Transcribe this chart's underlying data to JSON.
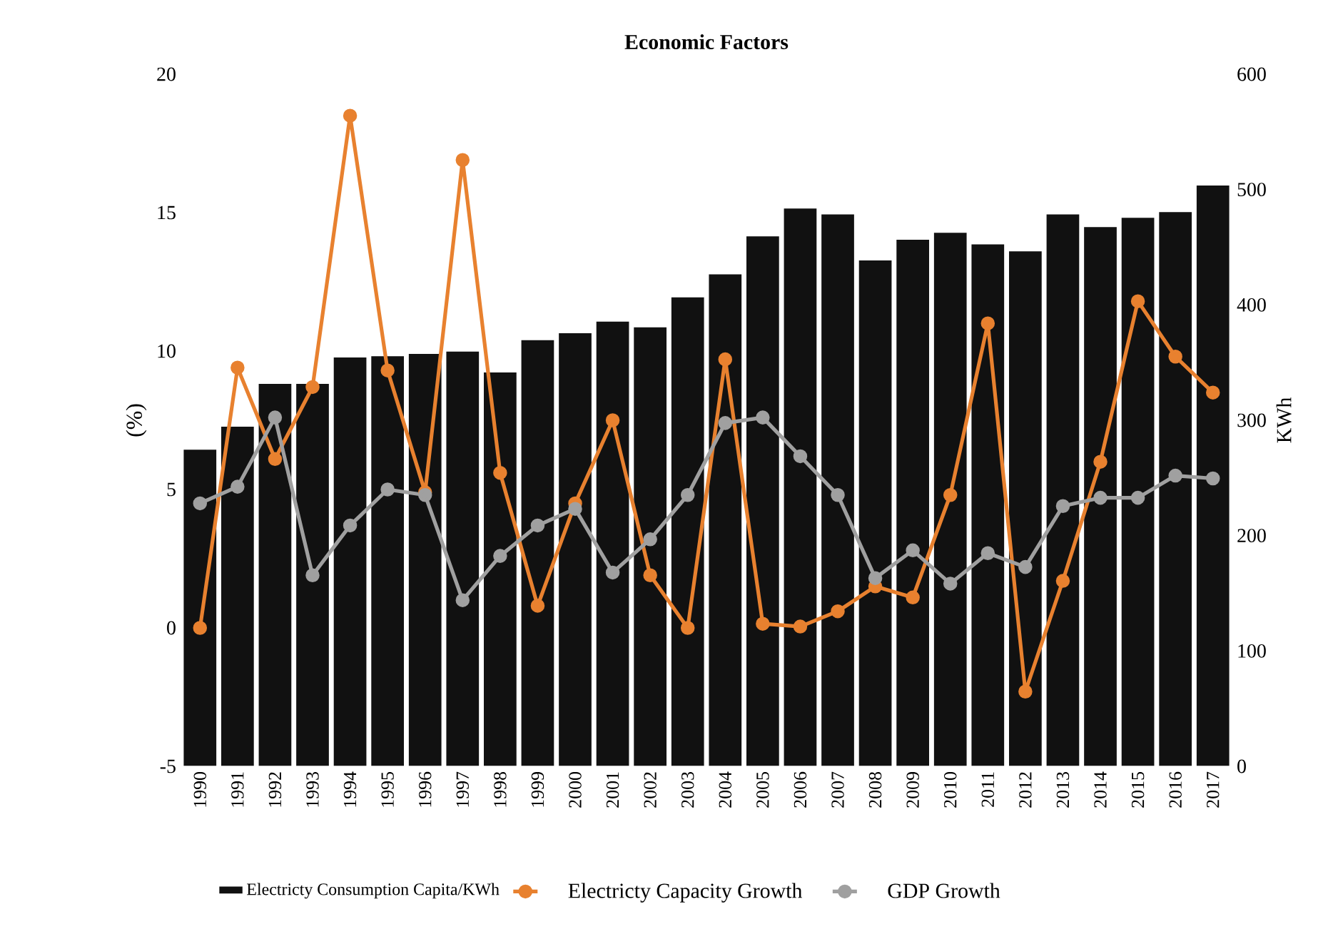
{
  "chart_data": {
    "type": "bar",
    "title": "Economic Factors",
    "ylabel": "(%)",
    "y2label": "KWh",
    "categories": [
      "1990",
      "1991",
      "1992",
      "1993",
      "1994",
      "1995",
      "1996",
      "1997",
      "1998",
      "1999",
      "2000",
      "2001",
      "2002",
      "2003",
      "2004",
      "2005",
      "2006",
      "2007",
      "2008",
      "2009",
      "2010",
      "2011",
      "2012",
      "2013",
      "2014",
      "2015",
      "2016",
      "2017"
    ],
    "series": [
      {
        "name": "Electricty Consumption Capita/KWh",
        "axis": "y2",
        "color": "#111111",
        "values": [
          275,
          295,
          332,
          332,
          355,
          356,
          358,
          360,
          342,
          370,
          376,
          386,
          381,
          407,
          427,
          460,
          484,
          479,
          439,
          457,
          463,
          453,
          447,
          479,
          468,
          476,
          481,
          504
        ]
      },
      {
        "name": "Electricty Capacity Growth",
        "type": "line",
        "color": "#e8812f",
        "values": [
          0,
          9.4,
          6.1,
          8.7,
          18.5,
          9.3,
          4.9,
          16.9,
          5.6,
          0.8,
          4.5,
          7.5,
          1.9,
          0,
          9.7,
          0.15,
          0.05,
          0.6,
          1.5,
          1.1,
          4.8,
          11,
          -2.3,
          1.7,
          6,
          11.8,
          9.8,
          8.5
        ]
      },
      {
        "name": "GDP Growth",
        "type": "line",
        "color": "#a0a0a0",
        "values": [
          4.5,
          5.1,
          7.6,
          1.9,
          3.7,
          5.0,
          4.8,
          1.0,
          2.6,
          3.7,
          4.3,
          2.0,
          3.2,
          4.8,
          7.4,
          7.6,
          6.2,
          4.8,
          1.8,
          2.8,
          1.6,
          2.7,
          2.2,
          4.4,
          4.7,
          4.7,
          5.5,
          5.4
        ]
      }
    ],
    "ylim": [
      -5,
      20
    ],
    "yticks": [
      -5,
      0,
      5,
      10,
      15,
      20
    ],
    "y2lim": [
      0,
      600
    ],
    "y2ticks": [
      0,
      100,
      200,
      300,
      400,
      500,
      600
    ],
    "legend": "bottom",
    "marker": "circle",
    "line_style": "solid"
  }
}
